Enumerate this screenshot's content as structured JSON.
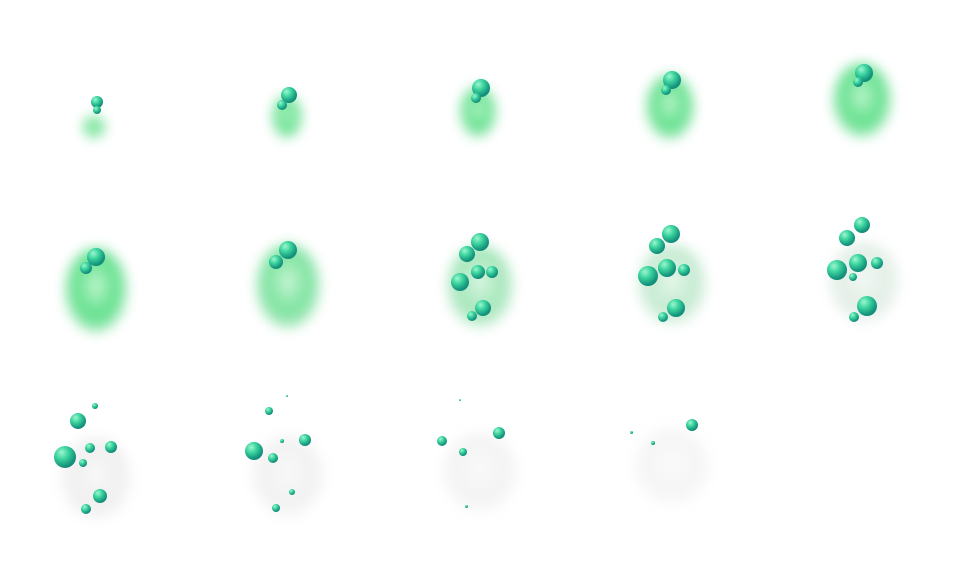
{
  "sprite_sheet": {
    "frame_count": 14,
    "columns": 5,
    "rows": 3,
    "colors": {
      "background": "#ffffff",
      "smoke_green": "#5fe08a",
      "smoke_gray": "#d8d8d8",
      "bubble_light": "#3fd6a0",
      "bubble_dark": "#0b6e66"
    },
    "smoke_opacity": [
      1,
      1,
      1,
      1,
      1,
      1,
      0.9,
      0.75,
      0.6,
      0.45,
      0.4,
      0.35,
      0.3,
      0.25
    ],
    "smoke_greenness": [
      1,
      1,
      1,
      1,
      1,
      1,
      0.9,
      0.7,
      0.5,
      0.2,
      0,
      0,
      0,
      0
    ]
  }
}
